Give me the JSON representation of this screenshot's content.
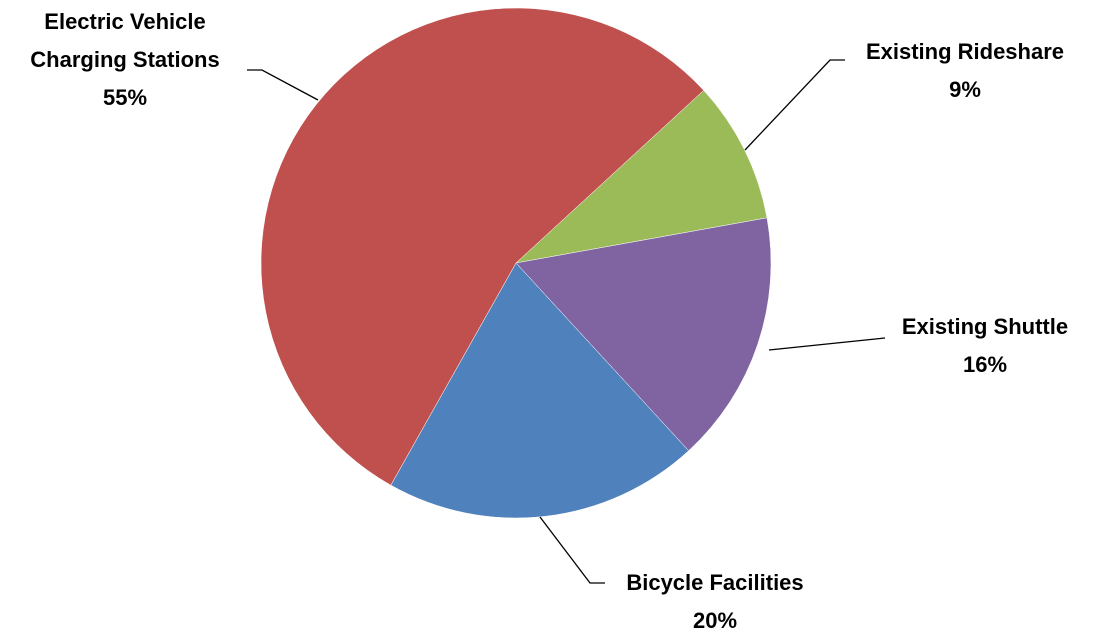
{
  "chart_data": {
    "type": "pie",
    "categories": [
      "Existing Rideshare",
      "Existing Shuttle",
      "Bicycle Facilities",
      "Electric Vehicle Charging Stations"
    ],
    "values": [
      9,
      16,
      20,
      55
    ],
    "value_labels": [
      "9%",
      "16%",
      "20%",
      "55%"
    ],
    "colors": [
      "#9bbb59",
      "#8064a2",
      "#4f81bd",
      "#c0504d"
    ]
  }
}
